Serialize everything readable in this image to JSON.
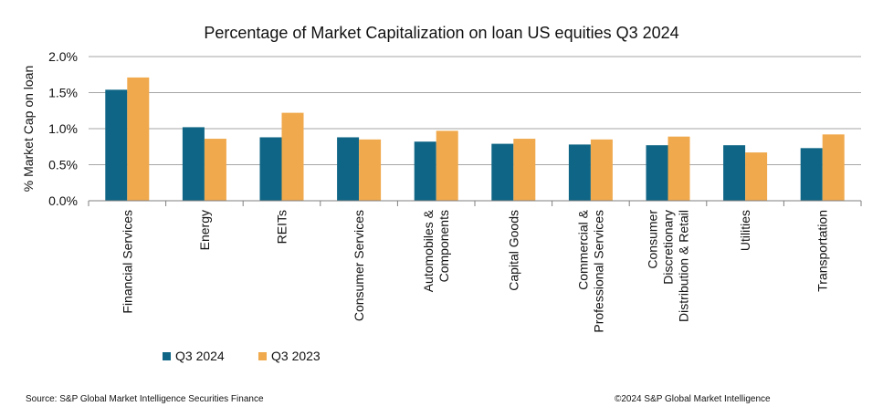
{
  "chart_data": {
    "type": "bar",
    "title": "Percentage of Market Capitalization on loan US equities Q3 2024",
    "xlabel": "",
    "ylabel": "% Market Cap on loan",
    "ylim": [
      0,
      2.0
    ],
    "yticks": [
      0,
      0.5,
      1.0,
      1.5,
      2.0
    ],
    "ytick_labels": [
      "0.0%",
      "0.5%",
      "1.0%",
      "1.5%",
      "2.0%"
    ],
    "grid": true,
    "legend_position": "bottom-left",
    "categories": [
      [
        "Financial Services"
      ],
      [
        "Energy"
      ],
      [
        "REITs"
      ],
      [
        "Consumer Services"
      ],
      [
        "Automobiles &",
        "Components"
      ],
      [
        "Capital Goods"
      ],
      [
        "Commercial &",
        "Professional Services"
      ],
      [
        "Consumer",
        "Discretionary",
        "Distribution & Retail"
      ],
      [
        "Utilities"
      ],
      [
        "Transportation"
      ]
    ],
    "series": [
      {
        "name": "Q3 2024",
        "color": "#0e6585",
        "values": [
          1.54,
          1.02,
          0.88,
          0.88,
          0.82,
          0.79,
          0.78,
          0.77,
          0.77,
          0.73
        ]
      },
      {
        "name": "Q3 2023",
        "color": "#f0a94c",
        "values": [
          1.71,
          0.86,
          1.22,
          0.85,
          0.97,
          0.86,
          0.85,
          0.89,
          0.67,
          0.92
        ]
      }
    ]
  },
  "footer": {
    "source": "Source: S&P Global Market Intelligence Securities Finance",
    "copyright": "©2024 S&P Global Market Intelligence"
  }
}
